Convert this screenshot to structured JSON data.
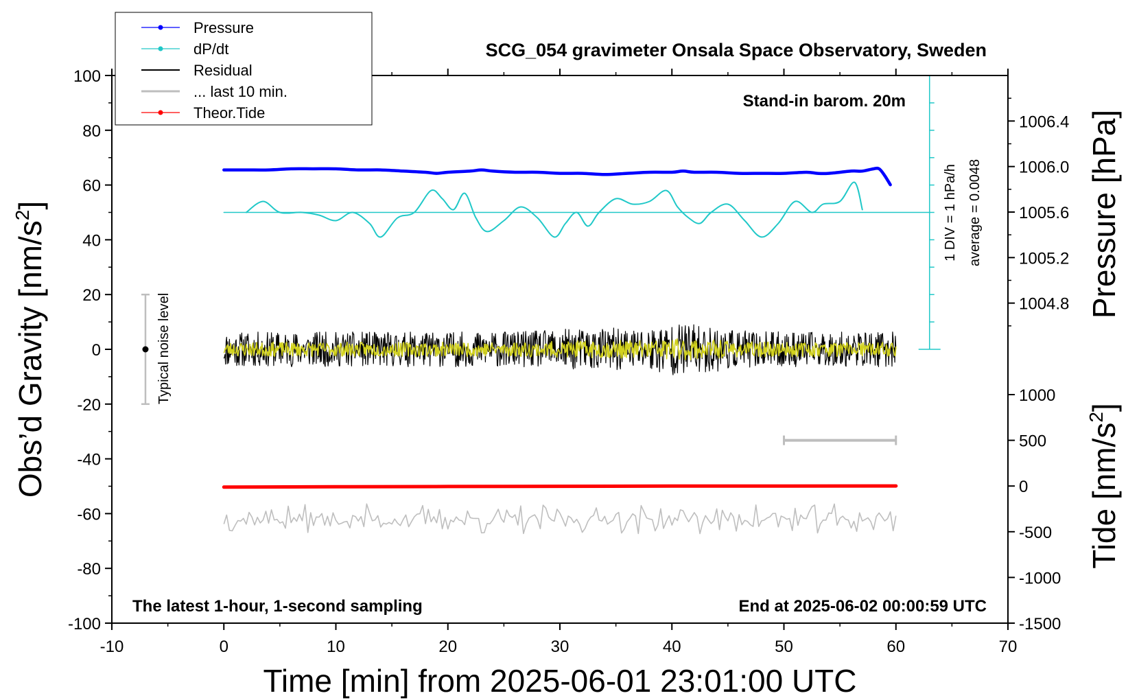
{
  "chart_data": {
    "type": "line",
    "title": "SCG_054 gravimeter Onsala Space Observatory, Sweden",
    "xlabel": "Time [min] from 2025-06-01 23:01:00 UTC",
    "ylabel_left": "Obs’d Gravity [nm/s2]",
    "ylabel_right_pressure": "Pressure [hPa]",
    "ylabel_right_tide": "Tide [nm/s2]",
    "xlim": [
      -10,
      70
    ],
    "ylim": [
      -100,
      100
    ],
    "xticks": [
      "-10",
      "0",
      "10",
      "20",
      "30",
      "40",
      "50",
      "60",
      "70"
    ],
    "yticks": [
      "-100",
      "-80",
      "-60",
      "-40",
      "-20",
      "0",
      "20",
      "40",
      "60",
      "80",
      "100"
    ],
    "pressure_ticks": [
      "1004.8",
      "1005.2",
      "1005.6",
      "1006.0",
      "1006.4"
    ],
    "tide_ticks": [
      "-1500",
      "-1000",
      "-500",
      "0",
      "500",
      "1000"
    ],
    "pressure_axis_range": [
      1004.4,
      1006.8
    ],
    "tide_axis_range": [
      -1500,
      1000
    ],
    "annotations": {
      "barometer": "Stand-in barom. 20m",
      "div_note": "1 DIV = 1 hPa/h",
      "average_note": "average = 0.0048",
      "noise_label": "Typical noise level",
      "bottom_left": "The latest 1-hour, 1-second sampling",
      "bottom_right": "End at 2025-06-02 00:00:59 UTC"
    },
    "noise_bar": {
      "x": -7,
      "y_center": 0,
      "y_range": [
        -20,
        20
      ]
    },
    "window_bar": {
      "x_range": [
        50,
        60
      ],
      "tide_value": 500
    },
    "dpdt_scale": {
      "x": 63,
      "y_range": [
        0,
        100
      ],
      "div_count": 10
    },
    "legend": [
      {
        "name": "Pressure",
        "color": "#0000ff",
        "marker": true
      },
      {
        "name": "dP/dt",
        "color": "#20c8c8",
        "marker": true
      },
      {
        "name": "Residual",
        "color": "#000000",
        "marker": false
      },
      {
        "name": "... last 10 min.",
        "color": "#bebebe",
        "marker": false
      },
      {
        "name": "Theor.Tide",
        "color": "#ff0000",
        "marker": true
      }
    ],
    "series": [
      {
        "name": "Pressure",
        "color": "#0000ff",
        "axis": "pressure_hPa",
        "x": [
          0,
          2,
          4,
          6,
          8,
          10,
          12,
          14,
          16,
          18,
          19,
          20,
          22,
          23,
          24,
          26,
          28,
          30,
          32,
          34,
          36,
          38,
          40,
          41,
          42,
          44,
          46,
          48,
          50,
          52,
          53,
          54,
          56,
          57,
          58,
          58.5,
          59,
          59.5
        ],
        "values": [
          1005.97,
          1005.97,
          1005.97,
          1005.98,
          1005.98,
          1005.98,
          1005.97,
          1005.97,
          1005.96,
          1005.95,
          1005.94,
          1005.95,
          1005.96,
          1005.97,
          1005.96,
          1005.95,
          1005.95,
          1005.94,
          1005.94,
          1005.93,
          1005.94,
          1005.95,
          1005.95,
          1005.96,
          1005.95,
          1005.95,
          1005.94,
          1005.94,
          1005.94,
          1005.95,
          1005.94,
          1005.94,
          1005.96,
          1005.96,
          1005.98,
          1005.98,
          1005.92,
          1005.84
        ]
      },
      {
        "name": "dP/dt",
        "color": "#20c8c8",
        "axis": "gravity_scaled",
        "x": [
          2,
          3.5,
          5,
          7,
          8.5,
          10,
          11.5,
          13,
          14,
          15.5,
          17,
          18.5,
          19.5,
          20.5,
          21.5,
          22.5,
          23.5,
          25,
          26.5,
          28,
          29.5,
          30.5,
          31.5,
          32.5,
          33.5,
          35,
          36.5,
          38,
          39.5,
          40.5,
          41.5,
          42.5,
          43.5,
          45,
          46.5,
          48,
          49.5,
          51,
          52.5,
          53.5,
          55,
          56.3,
          57
        ],
        "values": [
          50,
          54,
          50,
          50,
          49,
          47,
          50,
          46,
          41,
          48,
          50,
          58,
          55,
          51,
          57,
          48,
          43,
          47,
          52,
          48,
          41,
          46,
          50,
          45,
          50,
          55,
          53,
          54,
          58,
          52,
          48,
          46,
          50,
          53,
          47,
          41,
          46,
          54,
          50,
          53,
          54,
          61,
          51
        ]
      },
      {
        "name": "dP/dt average level",
        "color": "#20c8c8",
        "axis": "gravity_scaled",
        "x": [
          0,
          63
        ],
        "values": [
          50,
          50
        ]
      },
      {
        "name": "Residual",
        "color": "#000000",
        "axis": "gravity",
        "x_range": [
          0,
          60
        ],
        "level": 0,
        "noise_amplitude": 8.5,
        "min": -11.5,
        "max": 9.5
      },
      {
        "name": "Residual (smoothed)",
        "color": "#d2d21e",
        "axis": "gravity",
        "x_range": [
          0,
          60
        ],
        "level": 0,
        "noise_amplitude": 3.5
      },
      {
        "name": "... last 10 min.",
        "color": "#bebebe",
        "axis": "gravity",
        "x_range": [
          0,
          60
        ],
        "level": -62,
        "noise_amplitude": 6,
        "min": -70,
        "max": -53
      },
      {
        "name": "Theor.Tide",
        "color": "#ff0000",
        "axis": "tide_nm_s2",
        "x": [
          0,
          10,
          20,
          30,
          40,
          50,
          60
        ],
        "values": [
          -12,
          -8,
          -5,
          -3,
          -1,
          0,
          1
        ]
      }
    ]
  }
}
